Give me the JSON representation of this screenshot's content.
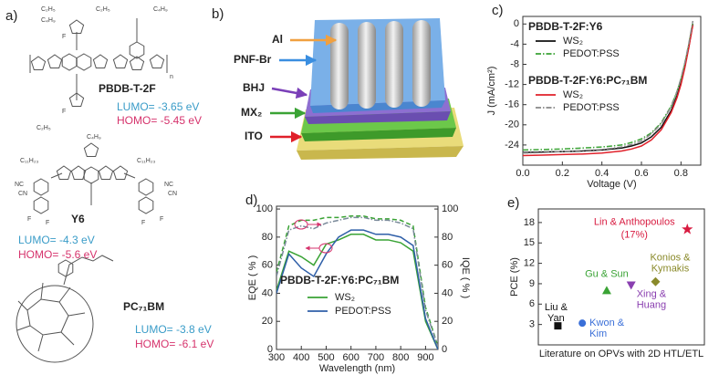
{
  "panel_a": {
    "label": "a)",
    "molecules": [
      {
        "name": "PBDB-T-2F",
        "lumo": "LUMO= -3.65 eV",
        "homo": "HOMO= -5.45 eV",
        "groups": [
          "C₂H₅",
          "C₄H₉",
          "C₂H₅",
          "C₄H₉",
          "F",
          "F",
          "n",
          "C₂H₅",
          "C₄H₉"
        ]
      },
      {
        "name": "Y6",
        "lumo": "LUMO= -4.3 eV",
        "homo": "HOMO= -5.6 eV",
        "groups": [
          "C₁₁H₂₃",
          "C₁₁H₂₃",
          "NC",
          "CN",
          "NC",
          "CN",
          "F",
          "F",
          "F",
          "F"
        ]
      },
      {
        "name": "PC₇₁BM",
        "lumo": "LUMO= -3.8 eV",
        "homo": "HOMO= -6.1 eV"
      }
    ]
  },
  "panel_b": {
    "label": "b)",
    "layers": [
      "Al",
      "PNF-Br",
      "BHJ",
      "MX₂",
      "ITO"
    ]
  },
  "chart_data": [
    {
      "type": "line",
      "panel": "c)",
      "x_label": "Voltage (V)",
      "y_label": "J (mA/cm²)",
      "xlim": [
        0,
        0.9
      ],
      "xticks": [
        {
          "value": 0,
          "label": "0.0"
        },
        {
          "value": 0.2,
          "label": "0.2"
        },
        {
          "value": 0.4,
          "label": "0.4"
        },
        {
          "value": 0.6,
          "label": "0.6"
        },
        {
          "value": 0.8,
          "label": "0.8"
        }
      ],
      "ylim": [
        -28,
        1.5
      ],
      "yticks": [
        0,
        -4,
        -8,
        -12,
        -16,
        -20,
        -24
      ],
      "x": [
        0,
        0.1,
        0.2,
        0.3,
        0.4,
        0.5,
        0.55,
        0.6,
        0.65,
        0.7,
        0.75,
        0.78,
        0.8,
        0.82,
        0.84,
        0.86
      ],
      "groups": [
        {
          "name": "PBDB-T-2F:Y6",
          "series": [
            {
              "name": "WS₂",
              "color": "#111111",
              "linestyle": "solid",
              "values": [
                -25.5,
                -25.4,
                -25.3,
                -25.2,
                -25.0,
                -24.6,
                -24.2,
                -23.6,
                -22.4,
                -20.5,
                -17.2,
                -14.2,
                -11.6,
                -8.3,
                -4.4,
                0
              ]
            },
            {
              "name": "PEDOT:PSS",
              "color": "#3aa335",
              "linestyle": "dashdot",
              "values": [
                -25.0,
                -24.9,
                -24.8,
                -24.6,
                -24.4,
                -24.0,
                -23.5,
                -22.8,
                -21.6,
                -19.6,
                -16.3,
                -13.4,
                -10.9,
                -7.8,
                -4.0,
                0.3
              ]
            }
          ]
        },
        {
          "name": "PBDB-T-2F:Y6:PC₇₁BM",
          "series": [
            {
              "name": "WS₂",
              "color": "#e0202a",
              "linestyle": "solid",
              "values": [
                -26.1,
                -26.0,
                -25.9,
                -25.8,
                -25.6,
                -25.2,
                -24.8,
                -24.2,
                -23.0,
                -21.0,
                -17.6,
                -14.6,
                -12.0,
                -8.6,
                -4.6,
                -0.2
              ]
            },
            {
              "name": "PEDOT:PSS",
              "color": "#888888",
              "linestyle": "dashdot",
              "values": [
                -25.6,
                -25.5,
                -25.3,
                -25.1,
                -24.9,
                -24.4,
                -23.9,
                -23.2,
                -21.8,
                -19.8,
                -16.4,
                -13.4,
                -10.8,
                -7.6,
                -3.8,
                0.6
              ]
            }
          ]
        }
      ]
    },
    {
      "type": "line",
      "panel": "d)",
      "x_label": "Wavelength (nm)",
      "y_label": "EQE ( % )",
      "y2_label": "IQE ( % )",
      "legend_title": "PBDB-T-2F:Y6:PC₇₁BM",
      "xlim": [
        300,
        950
      ],
      "xticks": [
        300,
        400,
        500,
        600,
        700,
        800,
        900
      ],
      "ylim": [
        0,
        102
      ],
      "yticks": [
        0,
        20,
        40,
        60,
        80,
        100
      ],
      "y2lim": [
        0,
        102
      ],
      "y2ticks": [
        0,
        20,
        40,
        60,
        80,
        100
      ],
      "x": [
        300,
        350,
        400,
        450,
        500,
        550,
        600,
        650,
        700,
        750,
        800,
        850,
        900,
        950
      ],
      "series": [
        {
          "name": "WS₂",
          "color": "#3aa335",
          "linestyle": "solid",
          "values": [
            42,
            70,
            66,
            60,
            75,
            78,
            82,
            82,
            78,
            78,
            76,
            70,
            20,
            0
          ]
        },
        {
          "name": "PEDOT:PSS",
          "color": "#2f5fa8",
          "linestyle": "solid",
          "values": [
            40,
            68,
            58,
            52,
            68,
            80,
            85,
            85,
            82,
            82,
            80,
            74,
            22,
            0
          ]
        },
        {
          "color": "#3aa335",
          "linestyle": "dashed",
          "axis": "y2",
          "values": [
            55,
            88,
            92,
            92,
            94,
            94,
            95,
            95,
            93,
            93,
            92,
            88,
            30,
            2
          ]
        },
        {
          "color": "#7a8a9a",
          "linestyle": "dashdot",
          "axis": "y2",
          "values": [
            52,
            85,
            88,
            86,
            90,
            92,
            94,
            94,
            92,
            92,
            90,
            86,
            28,
            2
          ]
        }
      ]
    },
    {
      "type": "scatter",
      "panel": "e)",
      "x_label": "Literature on OPVs with 2D HTL/ETL",
      "y_label": "PCE (%)",
      "xlim": [
        0.2,
        7
      ],
      "ylim": [
        0,
        20
      ],
      "yticks": [
        3,
        6,
        9,
        12,
        15,
        18
      ],
      "points": [
        {
          "label": [
            "Liu &",
            "Yan"
          ],
          "x": 1,
          "y": 2.8,
          "color": "#111111",
          "marker": "square"
        },
        {
          "label": [
            "Kwon &",
            "Kim"
          ],
          "x": 2,
          "y": 3.2,
          "color": "#3a6fd8",
          "marker": "circle"
        },
        {
          "label": [
            "Gu & Sun"
          ],
          "x": 3,
          "y": 8,
          "color": "#3aa335",
          "marker": "triangle"
        },
        {
          "label": [
            "Xing &",
            "Huang"
          ],
          "x": 4,
          "y": 8.8,
          "color": "#8a3fb0",
          "marker": "triangle-down"
        },
        {
          "label": [
            "Konios &",
            "Kymakis"
          ],
          "x": 5,
          "y": 9.3,
          "color": "#8a8a2a",
          "marker": "diamond"
        },
        {
          "label": [
            "Lin & Anthopoulos"
          ],
          "value_label": "(17%)",
          "x": 6.3,
          "y": 17,
          "color": "#d81b40",
          "marker": "star"
        }
      ]
    }
  ]
}
